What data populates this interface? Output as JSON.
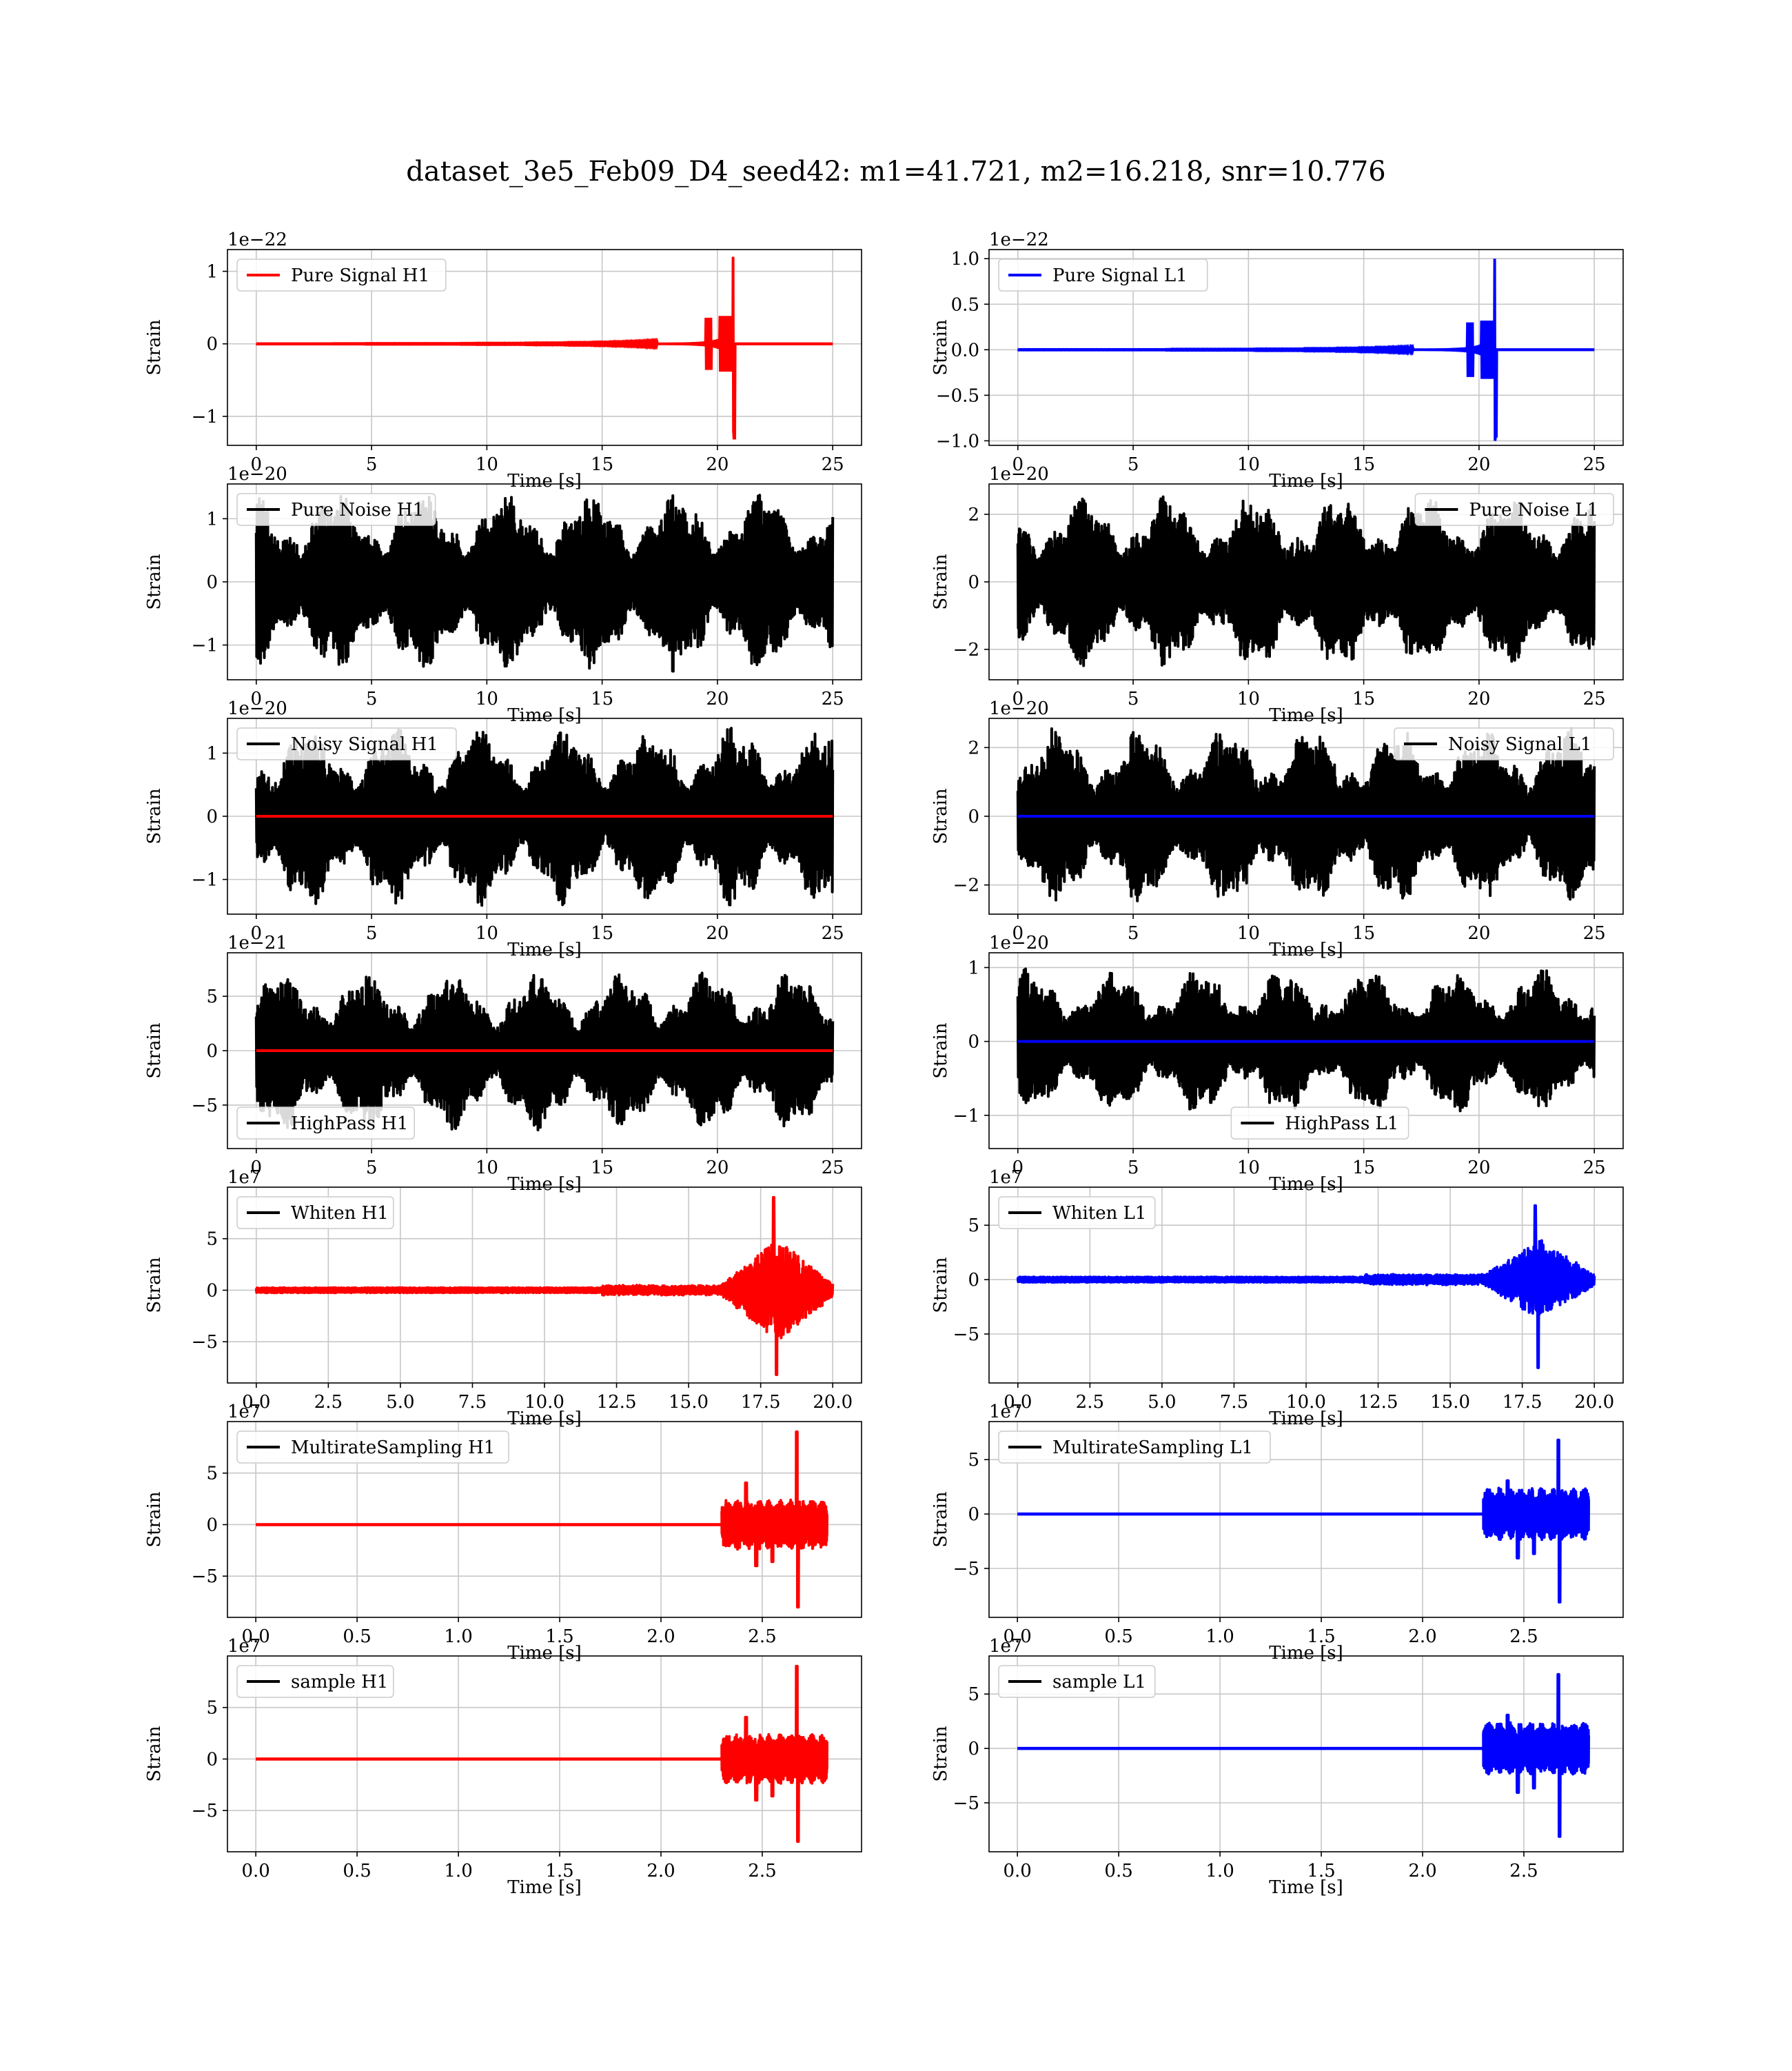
{
  "figure": {
    "title": "dataset_3e5_Feb09_D4_seed42: m1=41.721, m2=16.218, snr=10.776"
  },
  "chart_data": [
    {
      "id": "r0c0",
      "type": "line",
      "legend": "Pure Signal H1",
      "legend_pos": "upper-left",
      "color": "#ff0000",
      "legend_color": "#ff0000",
      "xlabel": "Time [s]",
      "ylabel": "Strain",
      "offset_text": "1e−22",
      "xlim": [
        -1.25,
        26.25
      ],
      "ylim": [
        -1.4,
        1.3
      ],
      "xticks": [
        0,
        5,
        10,
        15,
        20,
        25
      ],
      "xtick_labels": [
        "0",
        "5",
        "10",
        "15",
        "20",
        "25"
      ],
      "yticks": [
        -1,
        0,
        1
      ],
      "ytick_labels": [
        "−1",
        "0",
        "1"
      ],
      "grid": true,
      "signal": {
        "kind": "chirp",
        "x_start": 0,
        "x_end": 25,
        "merger": 20.7,
        "peak_pos": 1.2,
        "peak_neg": -1.3,
        "sep_color": null,
        "line_value": 0
      }
    },
    {
      "id": "r0c1",
      "type": "line",
      "legend": "Pure Signal L1",
      "legend_pos": "upper-left",
      "color": "#0000ff",
      "legend_color": "#0000ff",
      "xlabel": "Time [s]",
      "ylabel": "Strain",
      "offset_text": "1e−22",
      "xlim": [
        -1.25,
        26.25
      ],
      "ylim": [
        -1.05,
        1.1
      ],
      "xticks": [
        0,
        5,
        10,
        15,
        20,
        25
      ],
      "xtick_labels": [
        "0",
        "5",
        "10",
        "15",
        "20",
        "25"
      ],
      "yticks": [
        -1.0,
        -0.5,
        0.0,
        0.5,
        1.0
      ],
      "ytick_labels": [
        "−1.0",
        "−0.5",
        "0.0",
        "0.5",
        "1.0"
      ],
      "grid": true,
      "signal": {
        "kind": "chirp",
        "x_start": 0,
        "x_end": 25,
        "merger": 20.7,
        "peak_pos": 1.0,
        "peak_neg": -0.95,
        "sep_color": null,
        "line_value": 0
      }
    },
    {
      "id": "r1c0",
      "type": "line",
      "legend": "Pure Noise H1",
      "legend_pos": "upper-left",
      "color": "#000000",
      "legend_color": "#000000",
      "xlabel": "Time [s]",
      "ylabel": "Strain",
      "offset_text": "1e−20",
      "xlim": [
        -1.25,
        26.25
      ],
      "ylim": [
        -1.55,
        1.55
      ],
      "xticks": [
        0,
        5,
        10,
        15,
        20,
        25
      ],
      "xtick_labels": [
        "0",
        "5",
        "10",
        "15",
        "20",
        "25"
      ],
      "yticks": [
        -1,
        0,
        1
      ],
      "ytick_labels": [
        "−1",
        "0",
        "1"
      ],
      "grid": true,
      "signal": {
        "kind": "noise",
        "x_start": 0,
        "x_end": 25,
        "amplitude": 1.45,
        "overlay_color": null
      }
    },
    {
      "id": "r1c1",
      "type": "line",
      "legend": "Pure Noise L1",
      "legend_pos": "upper-right",
      "color": "#000000",
      "legend_color": "#000000",
      "xlabel": "Time [s]",
      "ylabel": "Strain",
      "offset_text": "1e−20",
      "xlim": [
        -1.25,
        26.25
      ],
      "ylim": [
        -2.9,
        2.9
      ],
      "xticks": [
        0,
        5,
        10,
        15,
        20,
        25
      ],
      "xtick_labels": [
        "0",
        "5",
        "10",
        "15",
        "20",
        "25"
      ],
      "yticks": [
        -2,
        0,
        2
      ],
      "ytick_labels": [
        "−2",
        "0",
        "2"
      ],
      "grid": true,
      "signal": {
        "kind": "noise",
        "x_start": 0,
        "x_end": 25,
        "amplitude": 2.6,
        "overlay_color": null
      }
    },
    {
      "id": "r2c0",
      "type": "line",
      "legend": "Noisy Signal H1",
      "legend_pos": "upper-left",
      "color": "#000000",
      "legend_color": "#000000",
      "xlabel": "Time [s]",
      "ylabel": "Strain",
      "offset_text": "1e−20",
      "xlim": [
        -1.25,
        26.25
      ],
      "ylim": [
        -1.55,
        1.55
      ],
      "xticks": [
        0,
        5,
        10,
        15,
        20,
        25
      ],
      "xtick_labels": [
        "0",
        "5",
        "10",
        "15",
        "20",
        "25"
      ],
      "yticks": [
        -1,
        0,
        1
      ],
      "ytick_labels": [
        "−1",
        "0",
        "1"
      ],
      "grid": true,
      "signal": {
        "kind": "noise",
        "x_start": 0,
        "x_end": 25,
        "amplitude": 1.45,
        "overlay_color": "#ff0000"
      }
    },
    {
      "id": "r2c1",
      "type": "line",
      "legend": "Noisy Signal L1",
      "legend_pos": "upper-right",
      "color": "#000000",
      "legend_color": "#000000",
      "xlabel": "Time [s]",
      "ylabel": "Strain",
      "offset_text": "1e−20",
      "xlim": [
        -1.25,
        26.25
      ],
      "ylim": [
        -2.85,
        2.85
      ],
      "xticks": [
        0,
        5,
        10,
        15,
        20,
        25
      ],
      "xtick_labels": [
        "0",
        "5",
        "10",
        "15",
        "20",
        "25"
      ],
      "yticks": [
        -2,
        0,
        2
      ],
      "ytick_labels": [
        "−2",
        "0",
        "2"
      ],
      "grid": true,
      "signal": {
        "kind": "noise",
        "x_start": 0,
        "x_end": 25,
        "amplitude": 2.6,
        "overlay_color": "#0000ff"
      }
    },
    {
      "id": "r3c0",
      "type": "line",
      "legend": "HighPass H1",
      "legend_pos": "lower-left",
      "color": "#000000",
      "legend_color": "#000000",
      "xlabel": "Time [s]",
      "ylabel": "Strain",
      "offset_text": "1e−21",
      "xlim": [
        -1.25,
        26.25
      ],
      "ylim": [
        -9.0,
        9.0
      ],
      "xticks": [
        0,
        5,
        10,
        15,
        20,
        25
      ],
      "xtick_labels": [
        "0",
        "5",
        "10",
        "15",
        "20",
        "25"
      ],
      "yticks": [
        -5,
        0,
        5
      ],
      "ytick_labels": [
        "−5",
        "0",
        "5"
      ],
      "grid": true,
      "signal": {
        "kind": "noise",
        "x_start": 0,
        "x_end": 25,
        "amplitude": 7.5,
        "overlay_color": "#ff0000"
      }
    },
    {
      "id": "r3c1",
      "type": "line",
      "legend": "HighPass L1",
      "legend_pos": "lower-center",
      "color": "#000000",
      "legend_color": "#000000",
      "xlabel": "Time [s]",
      "ylabel": "Strain",
      "offset_text": "1e−20",
      "xlim": [
        -1.25,
        26.25
      ],
      "ylim": [
        -1.45,
        1.2
      ],
      "xticks": [
        0,
        5,
        10,
        15,
        20,
        25
      ],
      "xtick_labels": [
        "0",
        "5",
        "10",
        "15",
        "20",
        "25"
      ],
      "yticks": [
        -1,
        0,
        1
      ],
      "ytick_labels": [
        "−1",
        "0",
        "1"
      ],
      "grid": true,
      "signal": {
        "kind": "noise",
        "x_start": 0,
        "x_end": 25,
        "amplitude": 1.0,
        "overlay_color": "#0000ff"
      }
    },
    {
      "id": "r4c0",
      "type": "line",
      "legend": "Whiten H1",
      "legend_pos": "upper-left",
      "color": "#ff0000",
      "legend_color": "#000000",
      "xlabel": "Time [s]",
      "ylabel": "Strain",
      "offset_text": "1e7",
      "xlim": [
        -1.0,
        21.0
      ],
      "ylim": [
        -9.0,
        10.0
      ],
      "xticks": [
        0,
        2.5,
        5,
        7.5,
        10,
        12.5,
        15,
        17.5,
        20
      ],
      "xtick_labels": [
        "0.0",
        "2.5",
        "5.0",
        "7.5",
        "10.0",
        "12.5",
        "15.0",
        "17.5",
        "20.0"
      ],
      "yticks": [
        -5,
        0,
        5
      ],
      "ytick_labels": [
        "−5",
        "0",
        "5"
      ],
      "grid": true,
      "signal": {
        "kind": "burst",
        "x_start": 0,
        "x_end": 20,
        "center": 18.1,
        "peak_pos": 9.0,
        "peak_neg": -8.2
      }
    },
    {
      "id": "r4c1",
      "type": "line",
      "legend": "Whiten L1",
      "legend_pos": "upper-left",
      "color": "#0000ff",
      "legend_color": "#000000",
      "xlabel": "Time [s]",
      "ylabel": "Strain",
      "offset_text": "1e7",
      "xlim": [
        -1.0,
        21.0
      ],
      "ylim": [
        -9.5,
        8.5
      ],
      "xticks": [
        0,
        2.5,
        5,
        7.5,
        10,
        12.5,
        15,
        17.5,
        20
      ],
      "xtick_labels": [
        "0.0",
        "2.5",
        "5.0",
        "7.5",
        "10.0",
        "12.5",
        "15.0",
        "17.5",
        "20.0"
      ],
      "yticks": [
        -5,
        0,
        5
      ],
      "ytick_labels": [
        "−5",
        "0",
        "5"
      ],
      "grid": true,
      "signal": {
        "kind": "burst",
        "x_start": 0,
        "x_end": 20,
        "center": 18.1,
        "peak_pos": 6.8,
        "peak_neg": -8.1
      }
    },
    {
      "id": "r5c0",
      "type": "line",
      "legend": "MultirateSampling H1",
      "legend_pos": "upper-left",
      "color": "#ff0000",
      "legend_color": "#000000",
      "xlabel": "Time [s]",
      "ylabel": "Strain",
      "offset_text": "1e7",
      "xlim": [
        -0.14,
        2.99
      ],
      "ylim": [
        -9.0,
        10.0
      ],
      "xticks": [
        0.0,
        0.5,
        1.0,
        1.5,
        2.0,
        2.5
      ],
      "xtick_labels": [
        "0.0",
        "0.5",
        "1.0",
        "1.5",
        "2.0",
        "2.5"
      ],
      "yticks": [
        -5,
        0,
        5
      ],
      "ytick_labels": [
        "−5",
        "0",
        "5"
      ],
      "grid": true,
      "signal": {
        "kind": "multirate",
        "x_start": 0,
        "x_end": 2.82,
        "seg_start": 2.3,
        "spike": 2.67,
        "peak_pos": 9.0,
        "peak_neg": -8.0
      }
    },
    {
      "id": "r5c1",
      "type": "line",
      "legend": "MultirateSampling L1",
      "legend_pos": "upper-left",
      "color": "#0000ff",
      "legend_color": "#000000",
      "xlabel": "Time [s]",
      "ylabel": "Strain",
      "offset_text": "1e7",
      "xlim": [
        -0.14,
        2.99
      ],
      "ylim": [
        -9.5,
        8.5
      ],
      "xticks": [
        0.0,
        0.5,
        1.0,
        1.5,
        2.0,
        2.5
      ],
      "xtick_labels": [
        "0.0",
        "0.5",
        "1.0",
        "1.5",
        "2.0",
        "2.5"
      ],
      "yticks": [
        -5,
        0,
        5
      ],
      "ytick_labels": [
        "−5",
        "0",
        "5"
      ],
      "grid": true,
      "signal": {
        "kind": "multirate",
        "x_start": 0,
        "x_end": 2.82,
        "seg_start": 2.3,
        "spike": 2.67,
        "peak_pos": 6.8,
        "peak_neg": -8.1
      }
    },
    {
      "id": "r6c0",
      "type": "line",
      "legend": "sample H1",
      "legend_pos": "upper-left",
      "color": "#ff0000",
      "legend_color": "#000000",
      "xlabel": "Time [s]",
      "ylabel": "Strain",
      "offset_text": "1e7",
      "xlim": [
        -0.14,
        2.99
      ],
      "ylim": [
        -9.0,
        10.0
      ],
      "xticks": [
        0.0,
        0.5,
        1.0,
        1.5,
        2.0,
        2.5
      ],
      "xtick_labels": [
        "0.0",
        "0.5",
        "1.0",
        "1.5",
        "2.0",
        "2.5"
      ],
      "yticks": [
        -5,
        0,
        5
      ],
      "ytick_labels": [
        "−5",
        "0",
        "5"
      ],
      "grid": true,
      "signal": {
        "kind": "multirate",
        "x_start": 0,
        "x_end": 2.82,
        "seg_start": 2.3,
        "spike": 2.67,
        "peak_pos": 9.0,
        "peak_neg": -8.0
      }
    },
    {
      "id": "r6c1",
      "type": "line",
      "legend": "sample L1",
      "legend_pos": "upper-left",
      "color": "#0000ff",
      "legend_color": "#000000",
      "xlabel": "Time [s]",
      "ylabel": "Strain",
      "offset_text": "1e7",
      "xlim": [
        -0.14,
        2.99
      ],
      "ylim": [
        -9.5,
        8.5
      ],
      "xticks": [
        0.0,
        0.5,
        1.0,
        1.5,
        2.0,
        2.5
      ],
      "xtick_labels": [
        "0.0",
        "0.5",
        "1.0",
        "1.5",
        "2.0",
        "2.5"
      ],
      "yticks": [
        -5,
        0,
        5
      ],
      "ytick_labels": [
        "−5",
        "0",
        "5"
      ],
      "grid": true,
      "signal": {
        "kind": "multirate",
        "x_start": 0,
        "x_end": 2.82,
        "seg_start": 2.3,
        "spike": 2.67,
        "peak_pos": 6.8,
        "peak_neg": -8.1
      }
    }
  ]
}
